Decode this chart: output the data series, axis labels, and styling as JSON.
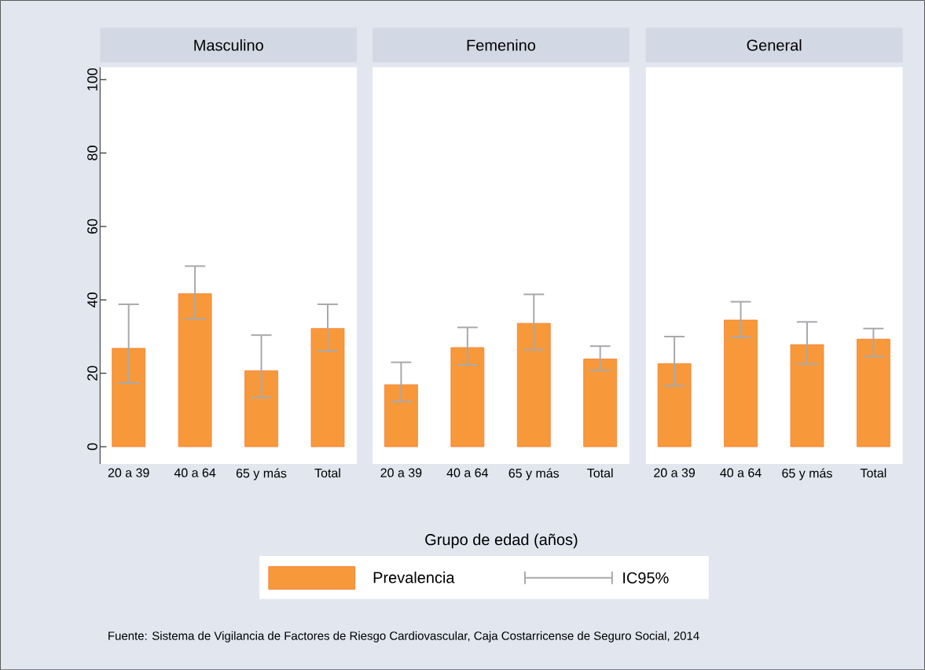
{
  "chart_data": [
    {
      "type": "bar",
      "title": "Masculino",
      "categories": [
        "20 a 39",
        "40 a 64",
        "65 y más",
        "Total"
      ],
      "series": [
        {
          "color": "#f7993a",
          "values": [
            26.8,
            41.7,
            20.7,
            32.2
          ],
          "errors": [
            [
              17.4,
              38.8
            ],
            [
              34.8,
              49.2
            ],
            [
              13.4,
              30.4
            ],
            [
              26.1,
              38.8
            ]
          ]
        }
      ],
      "ylim": [
        -4.7,
        103.4
      ],
      "yticks": [
        0,
        20,
        40,
        60,
        80,
        100
      ],
      "grid": false,
      "legend": false
    },
    {
      "type": "bar",
      "title": "Femenino",
      "categories": [
        "20 a 39",
        "40 a 64",
        "65 y más",
        "Total"
      ],
      "xlabel": "Grupo de edad (años)",
      "series": [
        {
          "name": "Prevalencia",
          "color": "#f7993a",
          "values": [
            16.9,
            27.0,
            33.6,
            23.9
          ],
          "errors": [
            [
              12.3,
              23.0
            ],
            [
              22.3,
              32.5
            ],
            [
              26.4,
              41.5
            ],
            [
              20.8,
              27.4
            ]
          ]
        }
      ],
      "ylim": [
        -4.7,
        103.4
      ],
      "yticks": [
        0,
        20,
        40,
        60,
        80,
        100
      ],
      "tick_labels": "x",
      "grid": false,
      "legend": "bottom",
      "annotations": [
        "IC95%",
        "Fuente:  Sistema de Vigilancia de Factores de Riesgo Cardiovascular, Caja Costarricense de Seguro Social, 2014"
      ]
    },
    {
      "type": "bar",
      "title": "General",
      "categories": [
        "20 a 39",
        "40 a 64",
        "65 y más",
        "Total"
      ],
      "series": [
        {
          "color": "#f7993a",
          "values": [
            22.6,
            34.5,
            27.8,
            29.3
          ],
          "errors": [
            [
              16.6,
              30.0
            ],
            [
              29.8,
              39.5
            ],
            [
              22.5,
              34.0
            ],
            [
              24.6,
              32.2
            ]
          ]
        }
      ],
      "ylim": [
        -4.7,
        103.4
      ],
      "yticks": [
        0,
        20,
        40,
        60,
        80,
        100
      ],
      "tick_labels": "x",
      "grid": false,
      "legend": false
    }
  ]
}
